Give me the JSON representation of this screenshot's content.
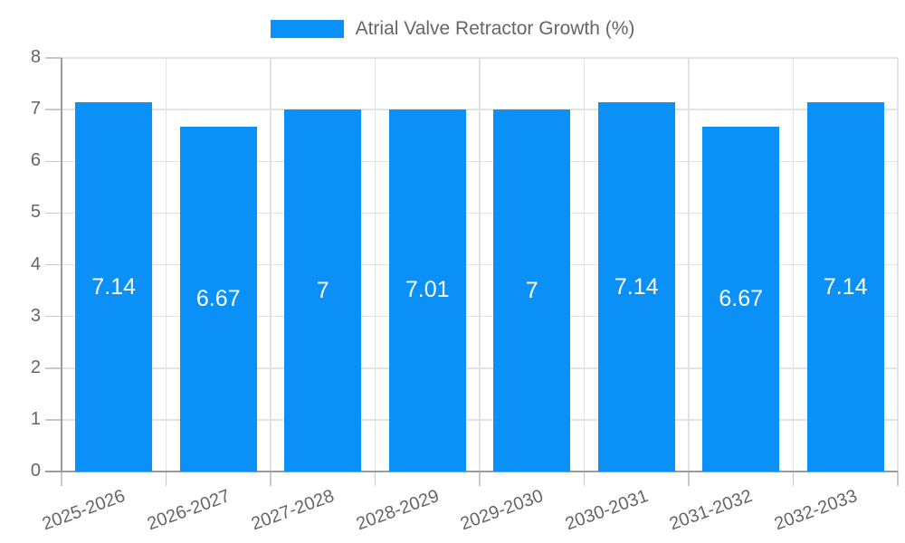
{
  "chart": {
    "legend_label": "Atrial Valve Retractor Growth (%)",
    "colors": {
      "bar": "#0b90f7",
      "grid": "#e3e3e3",
      "tick": "#c9c9c9",
      "axis_line": "#9a9a9a",
      "axis_text": "#666666",
      "value_label": "#ffffff"
    }
  },
  "chart_data": {
    "type": "bar",
    "title": "Atrial Valve Retractor Growth (%)",
    "categories": [
      "2025-2026",
      "2026-2027",
      "2027-2028",
      "2028-2029",
      "2029-2030",
      "2030-2031",
      "2031-2032",
      "2032-2033"
    ],
    "values": [
      7.14,
      6.67,
      7,
      7.01,
      7,
      7.14,
      6.67,
      7.14
    ],
    "value_labels": [
      "7.14",
      "6.67",
      "7",
      "7.01",
      "7",
      "7.14",
      "6.67",
      "7.14"
    ],
    "xlabel": "",
    "ylabel": "",
    "ylim": [
      0,
      8
    ],
    "yticks": [
      0,
      1,
      2,
      3,
      4,
      5,
      6,
      7,
      8
    ],
    "grid": true,
    "legend_position": "top",
    "x_label_rotation_deg": -20
  }
}
